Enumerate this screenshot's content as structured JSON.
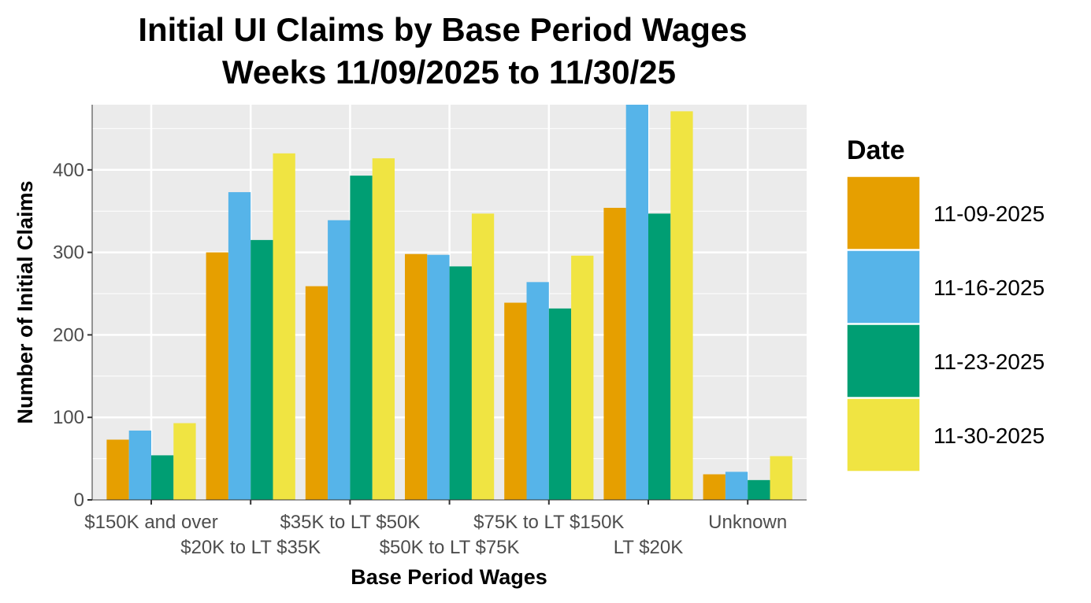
{
  "chart_data": {
    "type": "bar",
    "title": "Initial UI Claims by Base Period Wages",
    "subtitle": "Weeks 11/09/2025 to 11/30/25",
    "xlabel": "Base Period Wages",
    "ylabel": "Number of Initial Claims",
    "ylim": [
      0,
      479
    ],
    "yticks": [
      0,
      100,
      200,
      300,
      400
    ],
    "grid": true,
    "legend_title": "Date",
    "legend_position": "right",
    "categories": [
      "$150K and over",
      "$20K to LT $35K",
      "$35K to LT $50K",
      "$50K to LT $75K",
      "$75K to LT $150K",
      "LT $20K",
      "Unknown"
    ],
    "series": [
      {
        "name": "11-09-2025",
        "color": "#E69F00",
        "values": [
          73,
          300,
          259,
          298,
          239,
          354,
          31
        ]
      },
      {
        "name": "11-16-2025",
        "color": "#56B4E9",
        "values": [
          84,
          373,
          339,
          297,
          264,
          479,
          34
        ]
      },
      {
        "name": "11-23-2025",
        "color": "#009E73",
        "values": [
          54,
          315,
          393,
          283,
          232,
          347,
          24
        ]
      },
      {
        "name": "11-30-2025",
        "color": "#F0E442",
        "values": [
          93,
          420,
          414,
          347,
          296,
          471,
          53
        ]
      }
    ]
  }
}
